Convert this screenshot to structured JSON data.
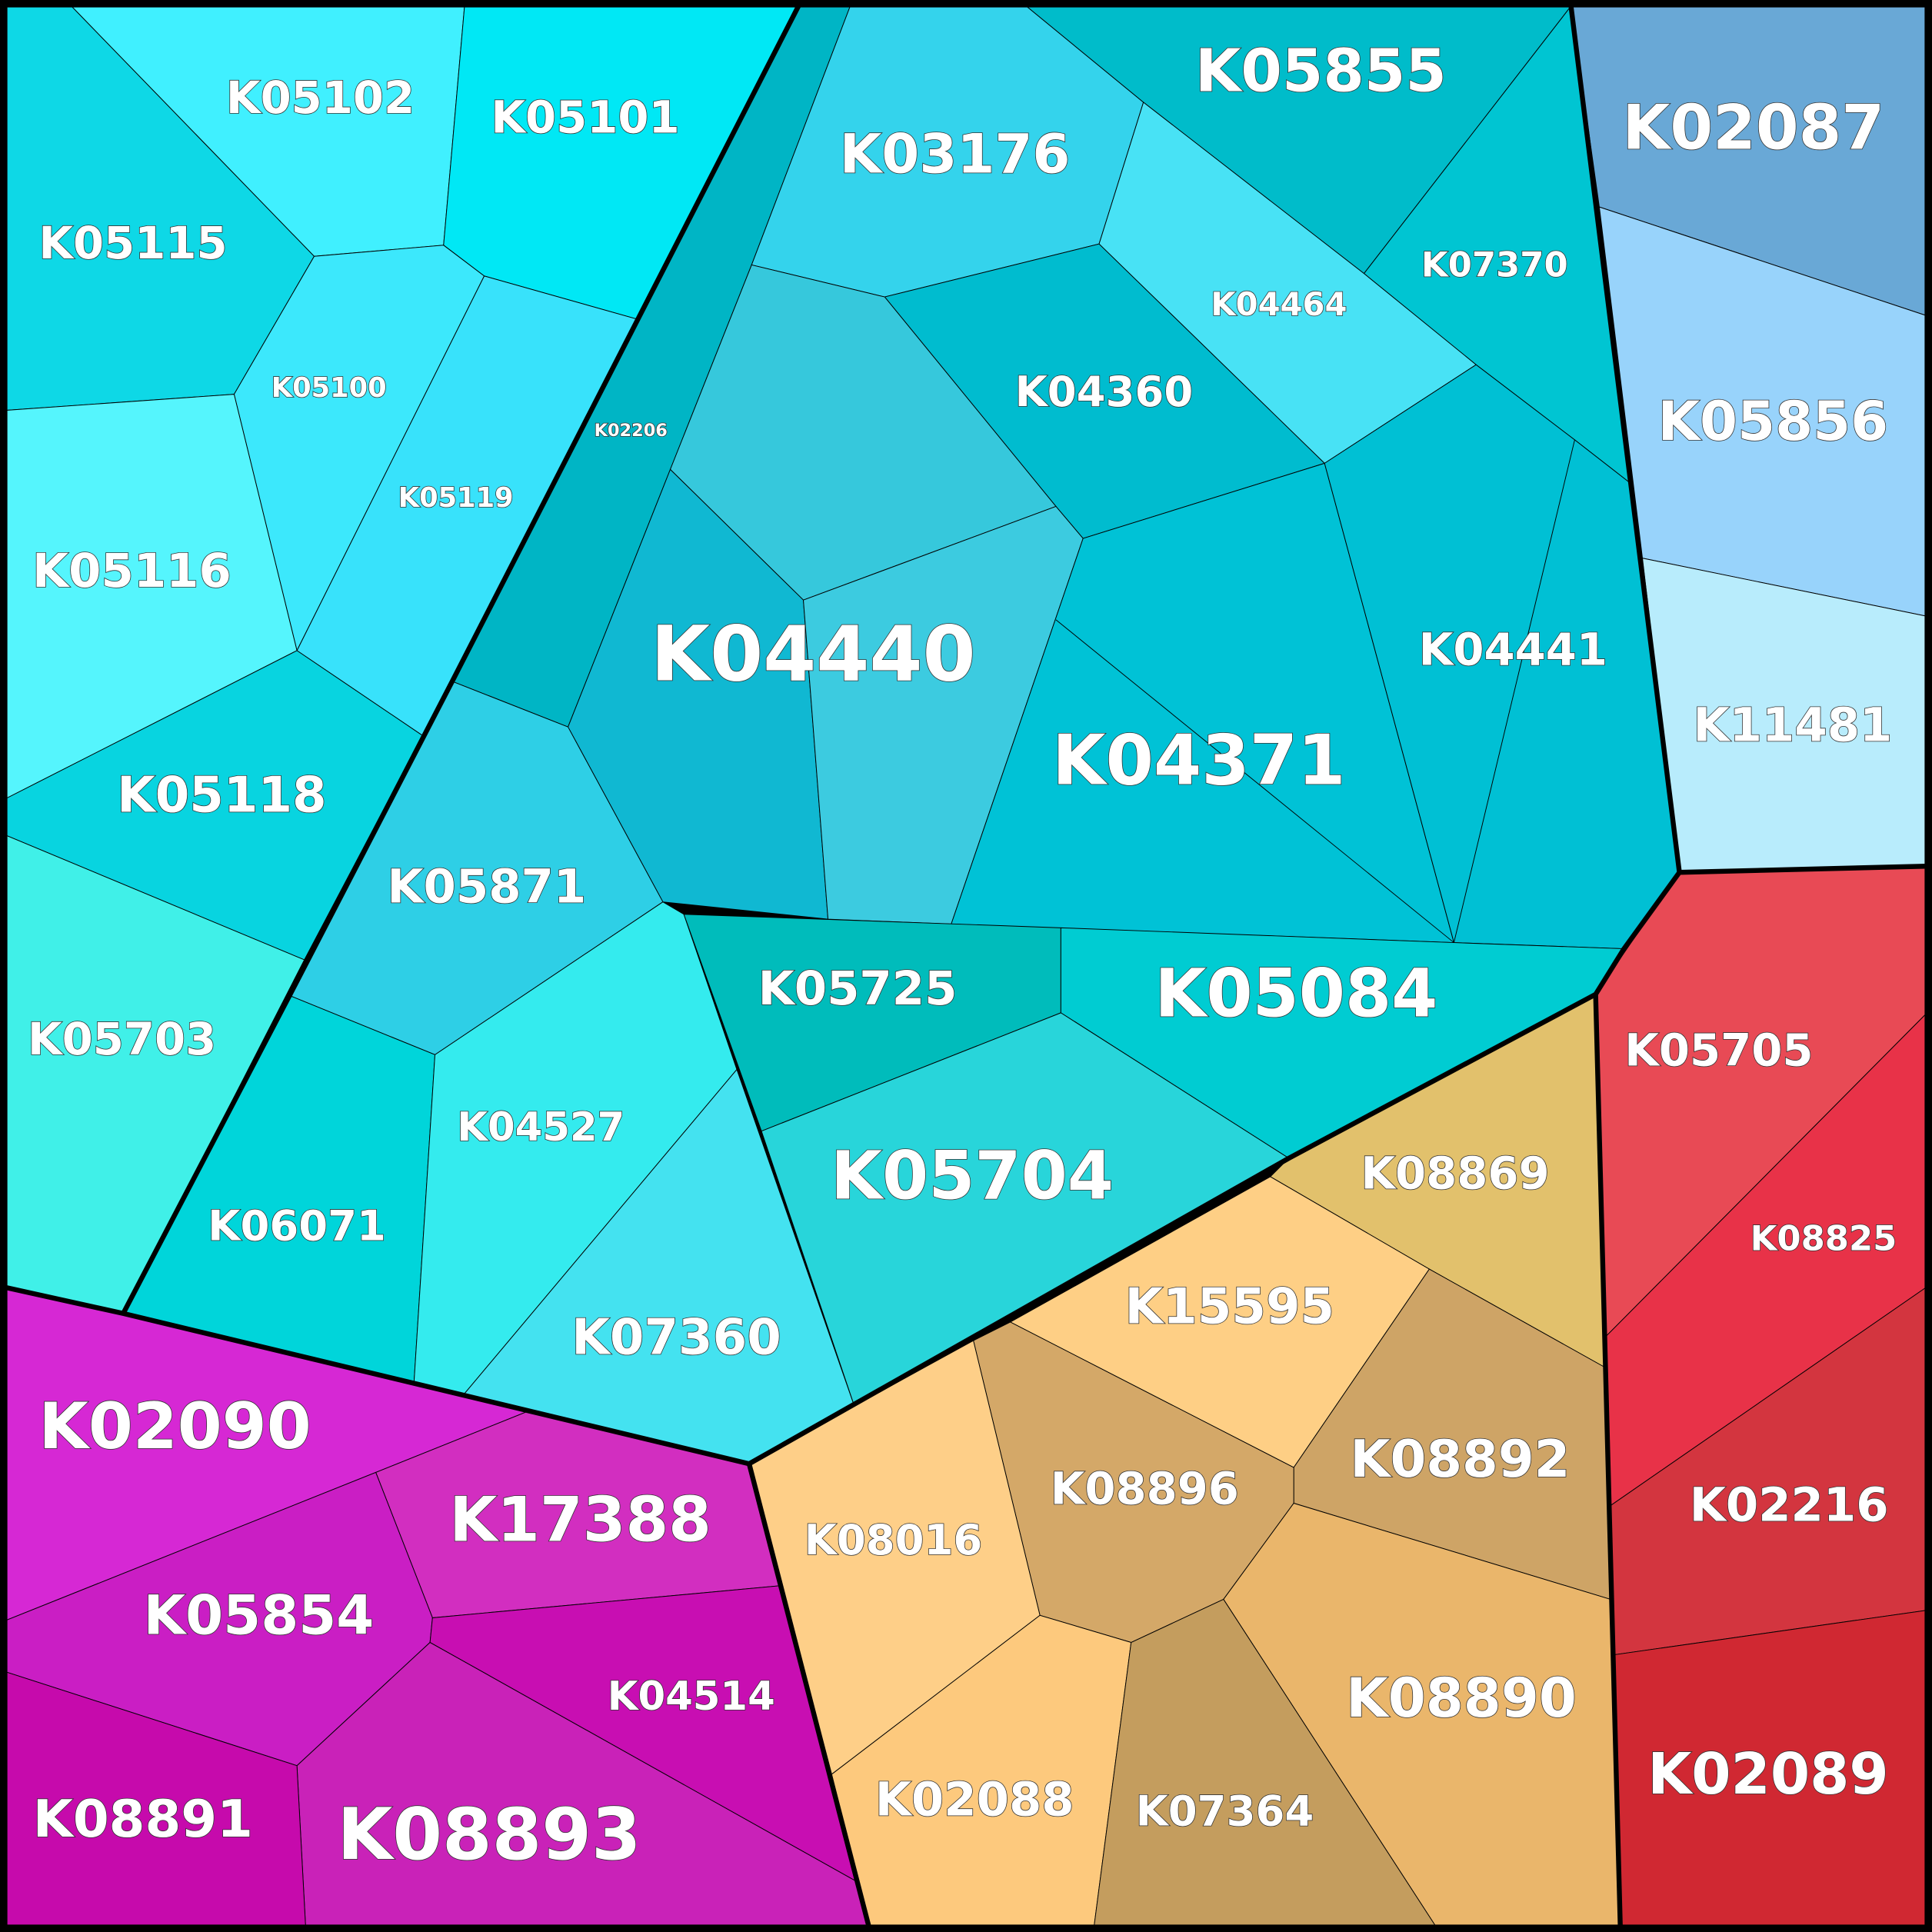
{
  "cells": [
    "K05115",
    "K05102",
    "K05101",
    "K05100",
    "K05119",
    "K05116",
    "K05118",
    "K05703",
    "K02206",
    "K03176",
    "K05855",
    "K07370",
    "K04464",
    "K04360",
    "K04440",
    "K04371",
    "K04441",
    "K05871",
    "K06071",
    "K04527",
    "K07360",
    "K05725",
    "K05084",
    "K05704",
    "K02087",
    "K05856",
    "K11481",
    "K05705",
    "K08825",
    "K02216",
    "K02089",
    "K08869",
    "K15595",
    "K08892",
    "K08896",
    "K08016",
    "K08890",
    "K02088",
    "K07364",
    "K02090",
    "K17388",
    "K05854",
    "K04514",
    "K08893",
    "K08891"
  ]
}
